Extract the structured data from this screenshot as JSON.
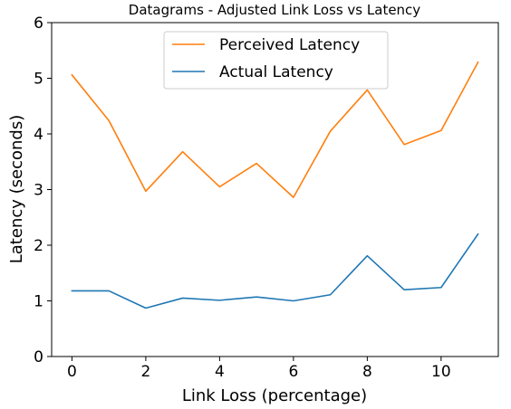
{
  "chart_data": {
    "type": "line",
    "title": "Datagrams - Adjusted Link Loss vs Latency",
    "xlabel": "Link Loss (percentage)",
    "ylabel": "Latency (seconds)",
    "xlim": [
      -0.55,
      11.55
    ],
    "ylim": [
      0,
      6
    ],
    "xticks": [
      0,
      2,
      4,
      6,
      8,
      10
    ],
    "yticks": [
      0,
      1,
      2,
      3,
      4,
      5,
      6
    ],
    "legend_position": "upper center",
    "grid": false,
    "x": [
      0,
      1,
      2,
      3,
      4,
      5,
      6,
      7,
      8,
      9,
      10,
      11
    ],
    "series": [
      {
        "name": "Perceived Latency",
        "color": "#ff7f0e",
        "values": [
          5.06,
          4.24,
          2.97,
          3.68,
          3.05,
          3.47,
          2.86,
          4.05,
          4.79,
          3.81,
          4.06,
          5.29
        ]
      },
      {
        "name": "Actual Latency",
        "color": "#1f77b4",
        "values": [
          1.18,
          1.18,
          0.87,
          1.05,
          1.01,
          1.07,
          1.0,
          1.11,
          1.81,
          1.2,
          1.24,
          2.2
        ]
      }
    ]
  }
}
